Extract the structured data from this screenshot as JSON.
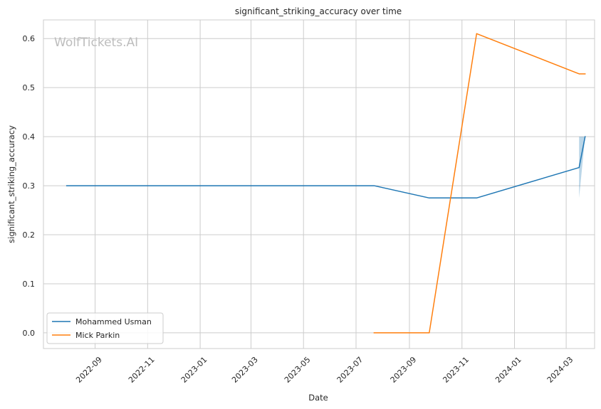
{
  "chart_data": {
    "type": "line",
    "title": "significant_striking_accuracy over time",
    "xlabel": "Date",
    "ylabel": "significant_striking_accuracy",
    "watermark": "WolfTickets.AI",
    "x_ticks": [
      "2022-09",
      "2022-11",
      "2023-01",
      "2023-03",
      "2023-05",
      "2023-07",
      "2023-09",
      "2023-11",
      "2024-01",
      "2024-03"
    ],
    "y_ticks": [
      "0.0",
      "0.1",
      "0.2",
      "0.3",
      "0.4",
      "0.5",
      "0.6"
    ],
    "ylim": [
      -0.032,
      0.638
    ],
    "xlim": [
      "2022-07-03",
      "2024-04-03"
    ],
    "grid": true,
    "legend_position": "lower-left",
    "series": [
      {
        "name": "Mohammed Usman",
        "color": "#1f77b4",
        "points": [
          {
            "x": "2022-07-30",
            "y": 0.3
          },
          {
            "x": "2023-07-22",
            "y": 0.3
          },
          {
            "x": "2023-09-24",
            "y": 0.275
          },
          {
            "x": "2023-11-18",
            "y": 0.275
          },
          {
            "x": "2024-03-16",
            "y": 0.337
          },
          {
            "x": "2024-03-23",
            "y": 0.4
          }
        ],
        "band": {
          "x": [
            "2024-03-16",
            "2024-03-23"
          ],
          "lower": [
            0.275,
            0.4
          ],
          "upper": [
            0.4,
            0.4
          ]
        }
      },
      {
        "name": "Mick Parkin",
        "color": "#ff7f0e",
        "points": [
          {
            "x": "2023-07-22",
            "y": 0.0
          },
          {
            "x": "2023-09-24",
            "y": 0.0
          },
          {
            "x": "2023-11-18",
            "y": 0.61
          },
          {
            "x": "2024-03-16",
            "y": 0.528
          },
          {
            "x": "2024-03-23",
            "y": 0.528
          }
        ]
      }
    ]
  }
}
